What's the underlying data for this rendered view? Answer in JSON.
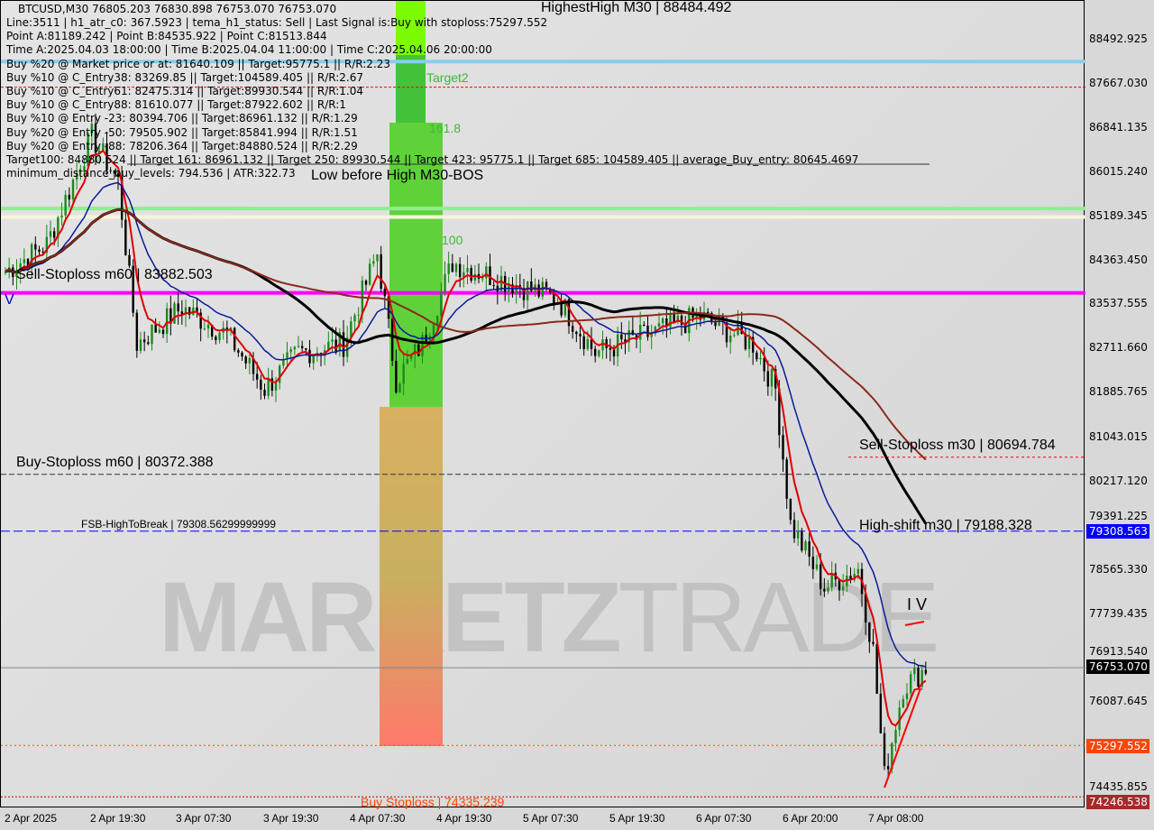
{
  "header": {
    "symbol_line": "BTCUSD,M30  76805.203 76830.898 76753.070 76753.070",
    "lines": [
      "Line:3511 | h1_atr_c0: 367.5923 | tema_h1_status: Sell | Last Signal is:Buy with stoploss:75297.552",
      "Point A:81189.242 | Point B:84535.922 | Point C:81513.844",
      "Time A:2025.04.03 18:00:00 | Time B:2025.04.04 11:00:00 | Time C:2025.04.06 20:00:00",
      "Buy %20 @ Market price or at: 81640.109 || Target:95775.1 || R/R:2.23",
      "Buy %10 @ C_Entry38: 83269.85 || Target:104589.405 || R/R:2.67",
      "Buy %10 @ C_Entry61: 82475.314 || Target:89930.544 || R/R:1.04",
      "Buy %10 @ C_Entry88: 81610.077 || Target:87922.602 || R/R:1",
      "Buy %10 @ Entry -23: 80394.706 || Target:86961.132 || R/R:1.29",
      "Buy %20 @ Entry -50: 79505.902 || Target:85841.994 || R/R:1.51",
      "Buy %20 @ Entry -88: 78206.364 || Target:84880.524 || R/R:2.29",
      "Target100: 84880.524 || Target 161: 86961.132 || Target 250: 89930.544 || Target 423: 95775.1 || Target 685: 104589.405 || average_Buy_entry: 80645.4697",
      "minimum_distance_buy_levels: 794.536 | ATR:322.73"
    ]
  },
  "annotations": {
    "highest_high": "HighestHigh   M30 | 88484.492",
    "low_before_high": "Low before High   M30-BOS",
    "target2": "Target2",
    "t1618": "161.8",
    "t100": "100",
    "sell_stoploss_m60": "Sell-Stoploss m60 | 83882.503",
    "buy_stoploss_m60": "Buy-Stoploss m60 | 80372.388",
    "fsb": "FSB-HighToBreak | 79308.56299999999",
    "sell_stoploss_m30": "Sell-Stoploss m30 | 80694.784",
    "high_shift_m30": "High-shift m30 | 79188.328",
    "buy_stoploss": "Buy Stoploss | 74335.239",
    "wave": "I V",
    "v_mark": "V",
    "watermark": "MARKETZ TRADE"
  },
  "colors": {
    "up": "#1a8a1a",
    "down": "#000000",
    "ema_fast": "#e00000",
    "ema_mid": "#0a1a9a",
    "sma_slow": "#000000",
    "sma_brown": "#8b2a1a",
    "magenta": "#ff00ff",
    "lightblue": "#87ceeb"
  },
  "price_axis": {
    "ticks": [
      "88492.925",
      "87667.030",
      "86841.135",
      "86015.240",
      "85189.345",
      "84363.450",
      "83537.555",
      "82711.660",
      "81885.765",
      "81043.015",
      "80217.120",
      "79391.225",
      "78565.330",
      "77739.435",
      "76913.540",
      "76087.645",
      "74435.855"
    ],
    "current": "76753.070",
    "fsb_box": "79308.563",
    "stop_box": "75297.552",
    "low_box": "74246.538"
  },
  "time_axis": [
    "2 Apr 2025",
    "2 Apr 19:30",
    "3 Apr 07:30",
    "3 Apr 19:30",
    "4 Apr 07:30",
    "4 Apr 19:30",
    "5 Apr 07:30",
    "5 Apr 19:30",
    "6 Apr 07:30",
    "6 Apr 20:00",
    "7 Apr 08:00"
  ],
  "chart_data": {
    "type": "candlestick",
    "title": "BTCUSD,M30",
    "ylim": [
      74000,
      89200
    ],
    "grid": false,
    "close_path": [
      {
        "t": "2025-04-02 08:00",
        "close": 84169
      },
      {
        "t": "2025-04-02 13:30",
        "close": 84676
      },
      {
        "t": "2025-04-02 19:30",
        "close": 86703
      },
      {
        "t": "2025-04-02 23:00",
        "close": 85858
      },
      {
        "t": "2025-04-03 01:30",
        "close": 82818
      },
      {
        "t": "2025-04-03 07:30",
        "close": 83493
      },
      {
        "t": "2025-04-03 13:30",
        "close": 82987
      },
      {
        "t": "2025-04-03 18:30",
        "close": 81974
      },
      {
        "t": "2025-04-03 23:00",
        "close": 82650
      },
      {
        "t": "2025-04-04 05:00",
        "close": 82818
      },
      {
        "t": "2025-04-04 09:30",
        "close": 84507
      },
      {
        "t": "2025-04-04 12:00",
        "close": 82143
      },
      {
        "t": "2025-04-04 15:30",
        "close": 82818
      },
      {
        "t": "2025-04-04 19:30",
        "close": 84338
      },
      {
        "t": "2025-04-05 02:30",
        "close": 84000
      },
      {
        "t": "2025-04-05 09:30",
        "close": 83662
      },
      {
        "t": "2025-04-05 14:30",
        "close": 82650
      },
      {
        "t": "2025-04-05 21:30",
        "close": 82987
      },
      {
        "t": "2025-04-06 04:30",
        "close": 83324
      },
      {
        "t": "2025-04-06 11:30",
        "close": 82818
      },
      {
        "t": "2025-04-06 14:30",
        "close": 81974
      },
      {
        "t": "2025-04-06 16:30",
        "close": 79440
      },
      {
        "t": "2025-04-06 21:00",
        "close": 78258
      },
      {
        "t": "2025-04-07 01:30",
        "close": 78596
      },
      {
        "t": "2025-04-07 03:30",
        "close": 77076
      },
      {
        "t": "2025-04-07 05:00",
        "close": 74711
      },
      {
        "t": "2025-04-07 07:30",
        "close": 76400
      },
      {
        "t": "2025-04-07 10:30",
        "close": 76753
      }
    ],
    "levels": [
      {
        "name": "lightblue",
        "price": 88100
      },
      {
        "name": "target2",
        "price": 87620
      },
      {
        "name": "green",
        "price": 85350
      },
      {
        "name": "cream",
        "price": 85190
      },
      {
        "name": "magenta",
        "price": 83770
      },
      {
        "name": "sell_sl_m30",
        "price": 80694.784
      },
      {
        "name": "buy_sl_m60",
        "price": 80372.388
      },
      {
        "name": "fsb",
        "price": 79308.563
      },
      {
        "name": "current",
        "price": 76753.07
      },
      {
        "name": "stop",
        "price": 75297.552
      },
      {
        "name": "buy_sl",
        "price": 74335.239
      }
    ]
  }
}
